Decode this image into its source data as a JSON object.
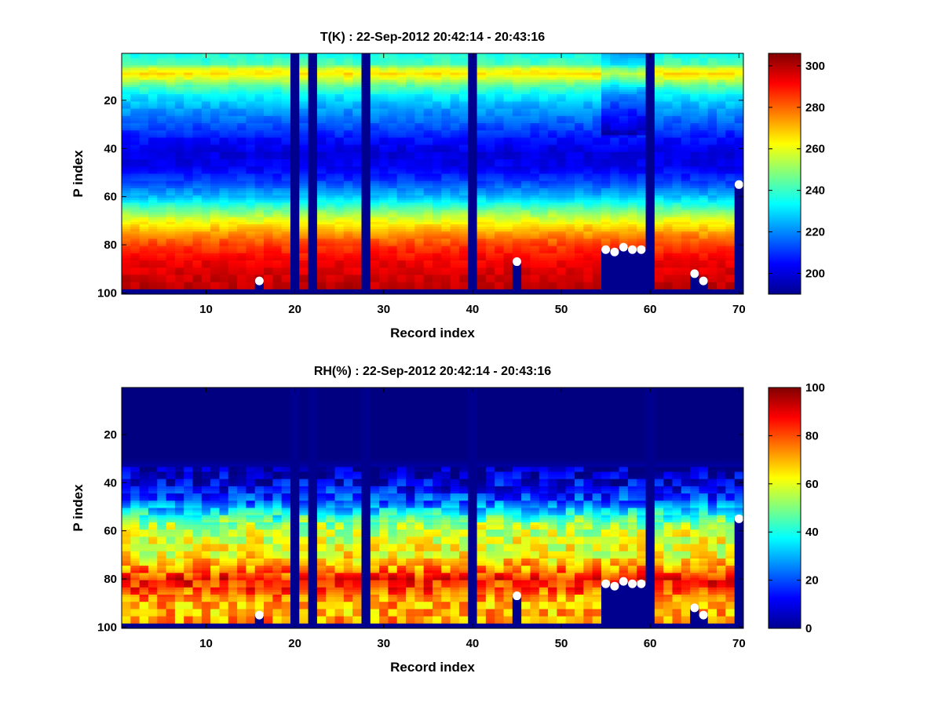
{
  "chart_data": [
    {
      "type": "heatmap",
      "title": "T(K) : 22-Sep-2012 20:42:14 - 20:43:16",
      "xlabel": "Record index",
      "ylabel": "P index",
      "xlim": [
        1,
        70
      ],
      "ylim": [
        1,
        100
      ],
      "y_direction": "reversed",
      "xticks": [
        10,
        20,
        30,
        40,
        50,
        60,
        70
      ],
      "yticks": [
        20,
        40,
        60,
        80,
        100
      ],
      "colormap": "jet",
      "clim": [
        190,
        306
      ],
      "colorbar_ticks": [
        200,
        220,
        240,
        260,
        280,
        300
      ],
      "fill_color": "#00008f",
      "marker_color": "#ffffff",
      "profile": [
        {
          "p": 1,
          "v": 236
        },
        {
          "p": 5,
          "v": 242
        },
        {
          "p": 7,
          "v": 258
        },
        {
          "p": 9,
          "v": 266
        },
        {
          "p": 11,
          "v": 258
        },
        {
          "p": 14,
          "v": 244
        },
        {
          "p": 18,
          "v": 232
        },
        {
          "p": 24,
          "v": 222
        },
        {
          "p": 30,
          "v": 214
        },
        {
          "p": 36,
          "v": 206
        },
        {
          "p": 42,
          "v": 201
        },
        {
          "p": 48,
          "v": 203
        },
        {
          "p": 54,
          "v": 212
        },
        {
          "p": 60,
          "v": 226
        },
        {
          "p": 64,
          "v": 240
        },
        {
          "p": 68,
          "v": 254
        },
        {
          "p": 72,
          "v": 266
        },
        {
          "p": 76,
          "v": 276
        },
        {
          "p": 80,
          "v": 284
        },
        {
          "p": 86,
          "v": 292
        },
        {
          "p": 92,
          "v": 296
        },
        {
          "p": 100,
          "v": 300
        }
      ],
      "missing_records": [
        20,
        22,
        28,
        40,
        60
      ],
      "partial_columns": [
        {
          "record": 55,
          "from_p": 1,
          "to_p": 34,
          "offset": -12
        },
        {
          "record": 56,
          "from_p": 1,
          "to_p": 34,
          "offset": -12
        },
        {
          "record": 57,
          "from_p": 1,
          "to_p": 34,
          "offset": -12
        },
        {
          "record": 58,
          "from_p": 1,
          "to_p": 34,
          "offset": -12
        },
        {
          "record": 59,
          "from_p": 1,
          "to_p": 34,
          "offset": -12
        }
      ],
      "surface_markers": [
        {
          "record": 16,
          "p": 95
        },
        {
          "record": 45,
          "p": 87
        },
        {
          "record": 55,
          "p": 82
        },
        {
          "record": 56,
          "p": 83
        },
        {
          "record": 57,
          "p": 81
        },
        {
          "record": 58,
          "p": 82
        },
        {
          "record": 59,
          "p": 82
        },
        {
          "record": 65,
          "p": 92
        },
        {
          "record": 66,
          "p": 95
        },
        {
          "record": 70,
          "p": 55
        }
      ],
      "fill_below_surface": true,
      "bottom_fill_from_p": 99
    },
    {
      "type": "heatmap",
      "title": "RH(%) : 22-Sep-2012 20:42:14 - 20:43:16",
      "xlabel": "Record index",
      "ylabel": "P index",
      "xlim": [
        1,
        70
      ],
      "ylim": [
        1,
        100
      ],
      "y_direction": "reversed",
      "xticks": [
        10,
        20,
        30,
        40,
        50,
        60,
        70
      ],
      "yticks": [
        20,
        40,
        60,
        80,
        100
      ],
      "colormap": "jet",
      "clim": [
        0,
        100
      ],
      "colorbar_ticks": [
        0,
        20,
        40,
        60,
        80,
        100
      ],
      "fill_color": "#00008f",
      "marker_color": "#ffffff",
      "profile": [
        {
          "p": 1,
          "v": 0
        },
        {
          "p": 30,
          "v": 0
        },
        {
          "p": 36,
          "v": 6
        },
        {
          "p": 42,
          "v": 12
        },
        {
          "p": 48,
          "v": 22
        },
        {
          "p": 54,
          "v": 42
        },
        {
          "p": 58,
          "v": 55
        },
        {
          "p": 64,
          "v": 60
        },
        {
          "p": 70,
          "v": 62
        },
        {
          "p": 76,
          "v": 74
        },
        {
          "p": 80,
          "v": 86
        },
        {
          "p": 84,
          "v": 82
        },
        {
          "p": 88,
          "v": 72
        },
        {
          "p": 94,
          "v": 70
        },
        {
          "p": 100,
          "v": 74
        }
      ],
      "missing_records": [
        20,
        22,
        28,
        40,
        60
      ],
      "partial_columns": [
        {
          "record": 55,
          "from_p": 1,
          "to_p": 34,
          "offset": 0
        },
        {
          "record": 56,
          "from_p": 1,
          "to_p": 34,
          "offset": 0
        },
        {
          "record": 57,
          "from_p": 1,
          "to_p": 34,
          "offset": 0
        },
        {
          "record": 58,
          "from_p": 1,
          "to_p": 34,
          "offset": 0
        },
        {
          "record": 59,
          "from_p": 1,
          "to_p": 34,
          "offset": 0
        }
      ],
      "surface_markers": [
        {
          "record": 16,
          "p": 95
        },
        {
          "record": 45,
          "p": 87
        },
        {
          "record": 55,
          "p": 82
        },
        {
          "record": 56,
          "p": 83
        },
        {
          "record": 57,
          "p": 81
        },
        {
          "record": 58,
          "p": 82
        },
        {
          "record": 59,
          "p": 82
        },
        {
          "record": 65,
          "p": 92
        },
        {
          "record": 66,
          "p": 95
        },
        {
          "record": 70,
          "p": 55
        }
      ],
      "fill_below_surface": true,
      "bottom_fill_from_p": 99
    }
  ]
}
